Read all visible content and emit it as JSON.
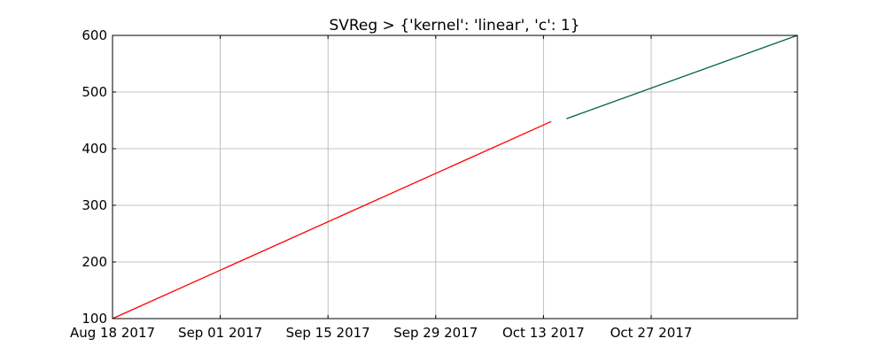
{
  "chart_data": {
    "type": "line",
    "title": "SVReg > {'kernel': 'linear', 'c': 1}",
    "xlabel": "",
    "ylabel": "",
    "xlim": [
      "2017-08-18",
      "2017-11-15"
    ],
    "ylim": [
      100,
      600
    ],
    "x_ticks": [
      {
        "date": "2017-08-18",
        "label": "Aug 18 2017"
      },
      {
        "date": "2017-09-01",
        "label": "Sep 01 2017"
      },
      {
        "date": "2017-09-15",
        "label": "Sep 15 2017"
      },
      {
        "date": "2017-09-29",
        "label": "Sep 29 2017"
      },
      {
        "date": "2017-10-13",
        "label": "Oct 13 2017"
      },
      {
        "date": "2017-10-27",
        "label": "Oct 27 2017"
      }
    ],
    "y_ticks": [
      100,
      200,
      300,
      400,
      500,
      600
    ],
    "grid": true,
    "series": [
      {
        "color": "#ff0000",
        "points": [
          {
            "x": "2017-08-18",
            "y": 100
          },
          {
            "x": "2017-10-14",
            "y": 448
          }
        ]
      },
      {
        "color": "#006633",
        "points": [
          {
            "x": "2017-10-16",
            "y": 453
          },
          {
            "x": "2017-11-15",
            "y": 600
          }
        ]
      }
    ]
  }
}
